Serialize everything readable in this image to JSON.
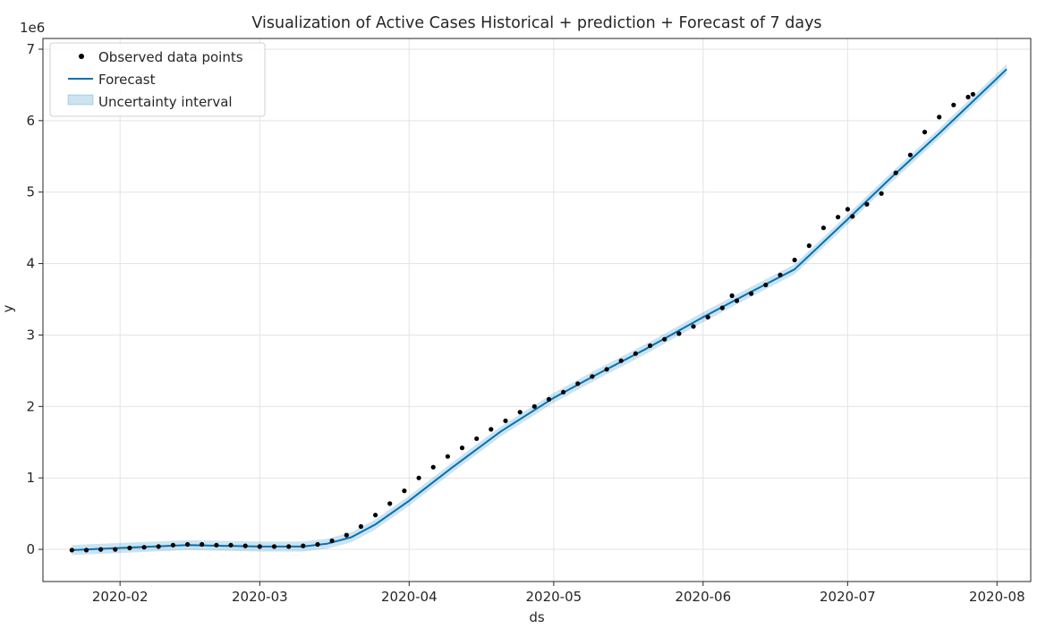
{
  "chart_data": {
    "type": "line",
    "title": "Visualization of Active Cases Historical + prediction + Forecast of 7 days",
    "xlabel": "ds",
    "ylabel": "y",
    "y_scale_note": "1e6",
    "x_ticks": [
      "2020-02",
      "2020-03",
      "2020-04",
      "2020-05",
      "2020-06",
      "2020-07",
      "2020-08"
    ],
    "y_ticks": [
      "0",
      "1",
      "2",
      "3",
      "4",
      "5",
      "6",
      "7"
    ],
    "xlim": [
      "2020-01-16",
      "2020-08-08"
    ],
    "ylim": [
      -0.45,
      7.15
    ],
    "grid": true,
    "legend_position": "top-left",
    "legend": [
      {
        "label": "Observed data points",
        "kind": "point"
      },
      {
        "label": "Forecast",
        "kind": "line"
      },
      {
        "label": "Uncertainty interval",
        "kind": "band"
      }
    ],
    "colors": {
      "points": "#000000",
      "forecast": "#0072B2",
      "band": "#0072B2"
    },
    "observed_series": {
      "name": "Observed data points",
      "x": [
        "2020-01-22",
        "2020-01-25",
        "2020-01-28",
        "2020-01-31",
        "2020-02-03",
        "2020-02-06",
        "2020-02-09",
        "2020-02-12",
        "2020-02-15",
        "2020-02-18",
        "2020-02-21",
        "2020-02-24",
        "2020-02-27",
        "2020-03-01",
        "2020-03-04",
        "2020-03-07",
        "2020-03-10",
        "2020-03-13",
        "2020-03-16",
        "2020-03-19",
        "2020-03-22",
        "2020-03-25",
        "2020-03-28",
        "2020-03-31",
        "2020-04-03",
        "2020-04-06",
        "2020-04-09",
        "2020-04-12",
        "2020-04-15",
        "2020-04-18",
        "2020-04-21",
        "2020-04-24",
        "2020-04-27",
        "2020-04-30",
        "2020-05-03",
        "2020-05-06",
        "2020-05-09",
        "2020-05-12",
        "2020-05-15",
        "2020-05-18",
        "2020-05-21",
        "2020-05-24",
        "2020-05-27",
        "2020-05-30",
        "2020-06-02",
        "2020-06-05",
        "2020-06-07",
        "2020-06-08",
        "2020-06-11",
        "2020-06-14",
        "2020-06-17",
        "2020-06-20",
        "2020-06-23",
        "2020-06-26",
        "2020-06-29",
        "2020-07-01",
        "2020-07-02",
        "2020-07-05",
        "2020-07-08",
        "2020-07-11",
        "2020-07-14",
        "2020-07-17",
        "2020-07-20",
        "2020-07-23",
        "2020-07-26",
        "2020-07-27"
      ],
      "y": [
        -0.01,
        -0.01,
        0.0,
        0.0,
        0.02,
        0.03,
        0.04,
        0.06,
        0.07,
        0.07,
        0.06,
        0.06,
        0.05,
        0.04,
        0.04,
        0.04,
        0.05,
        0.07,
        0.12,
        0.2,
        0.32,
        0.48,
        0.64,
        0.82,
        1.0,
        1.15,
        1.3,
        1.42,
        1.55,
        1.68,
        1.8,
        1.92,
        2.0,
        2.1,
        2.2,
        2.32,
        2.42,
        2.52,
        2.64,
        2.74,
        2.85,
        2.94,
        3.02,
        3.12,
        3.25,
        3.38,
        3.55,
        3.48,
        3.58,
        3.7,
        3.84,
        4.05,
        4.25,
        4.5,
        4.65,
        4.76,
        4.66,
        4.83,
        4.98,
        5.27,
        5.52,
        5.84,
        6.05,
        6.22,
        6.33,
        6.37
      ]
    },
    "forecast_series": {
      "name": "Forecast",
      "x": [
        "2020-01-22",
        "2020-02-01",
        "2020-02-15",
        "2020-03-01",
        "2020-03-10",
        "2020-03-15",
        "2020-03-20",
        "2020-03-25",
        "2020-04-01",
        "2020-04-10",
        "2020-04-20",
        "2020-05-01",
        "2020-05-10",
        "2020-05-20",
        "2020-06-01",
        "2020-06-10",
        "2020-06-20",
        "2020-07-01",
        "2020-07-10",
        "2020-07-20",
        "2020-08-03"
      ],
      "y": [
        -0.01,
        0.02,
        0.06,
        0.04,
        0.04,
        0.08,
        0.17,
        0.35,
        0.68,
        1.15,
        1.65,
        2.12,
        2.45,
        2.8,
        3.25,
        3.57,
        3.92,
        4.62,
        5.2,
        5.82,
        6.72
      ]
    },
    "uncertainty_halfwidth": 0.07
  }
}
